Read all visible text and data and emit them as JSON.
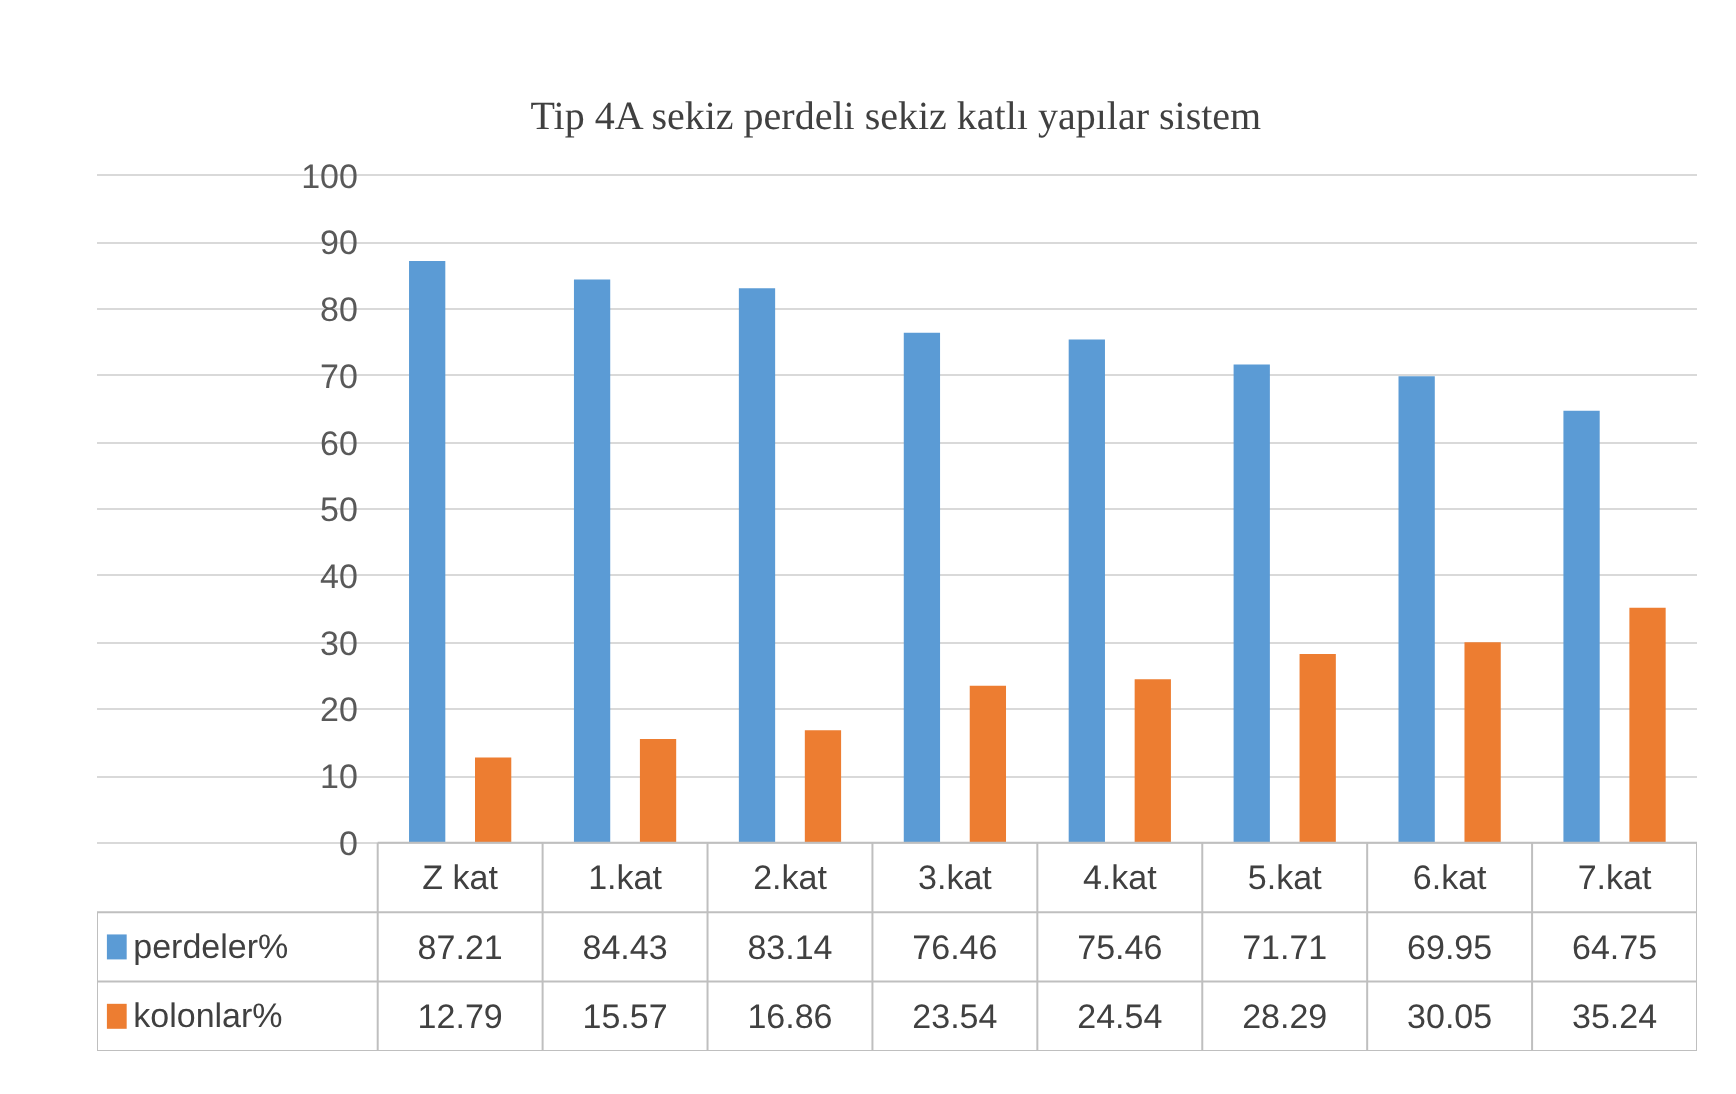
{
  "chart_data": {
    "type": "bar",
    "title": "Tip 4A sekiz perdeli sekiz katlı yapılar sistem",
    "categories": [
      "Z kat",
      "1.kat",
      "2.kat",
      "3.kat",
      "4.kat",
      "5.kat",
      "6.kat",
      "7.kat"
    ],
    "series": [
      {
        "name": "perdeler%",
        "color": "#5b9bd5",
        "values": [
          87.21,
          84.43,
          83.14,
          76.46,
          75.46,
          71.71,
          69.95,
          64.75
        ]
      },
      {
        "name": "kolonlar%",
        "color": "#ed7d31",
        "values": [
          12.79,
          15.57,
          16.86,
          23.54,
          24.54,
          28.29,
          30.05,
          35.24
        ]
      }
    ],
    "ylim": [
      0,
      100
    ],
    "yticks": [
      0,
      10,
      20,
      30,
      40,
      50,
      60,
      70,
      80,
      90,
      100
    ],
    "grid": "y",
    "legend": "bottom",
    "data_labels": true
  }
}
